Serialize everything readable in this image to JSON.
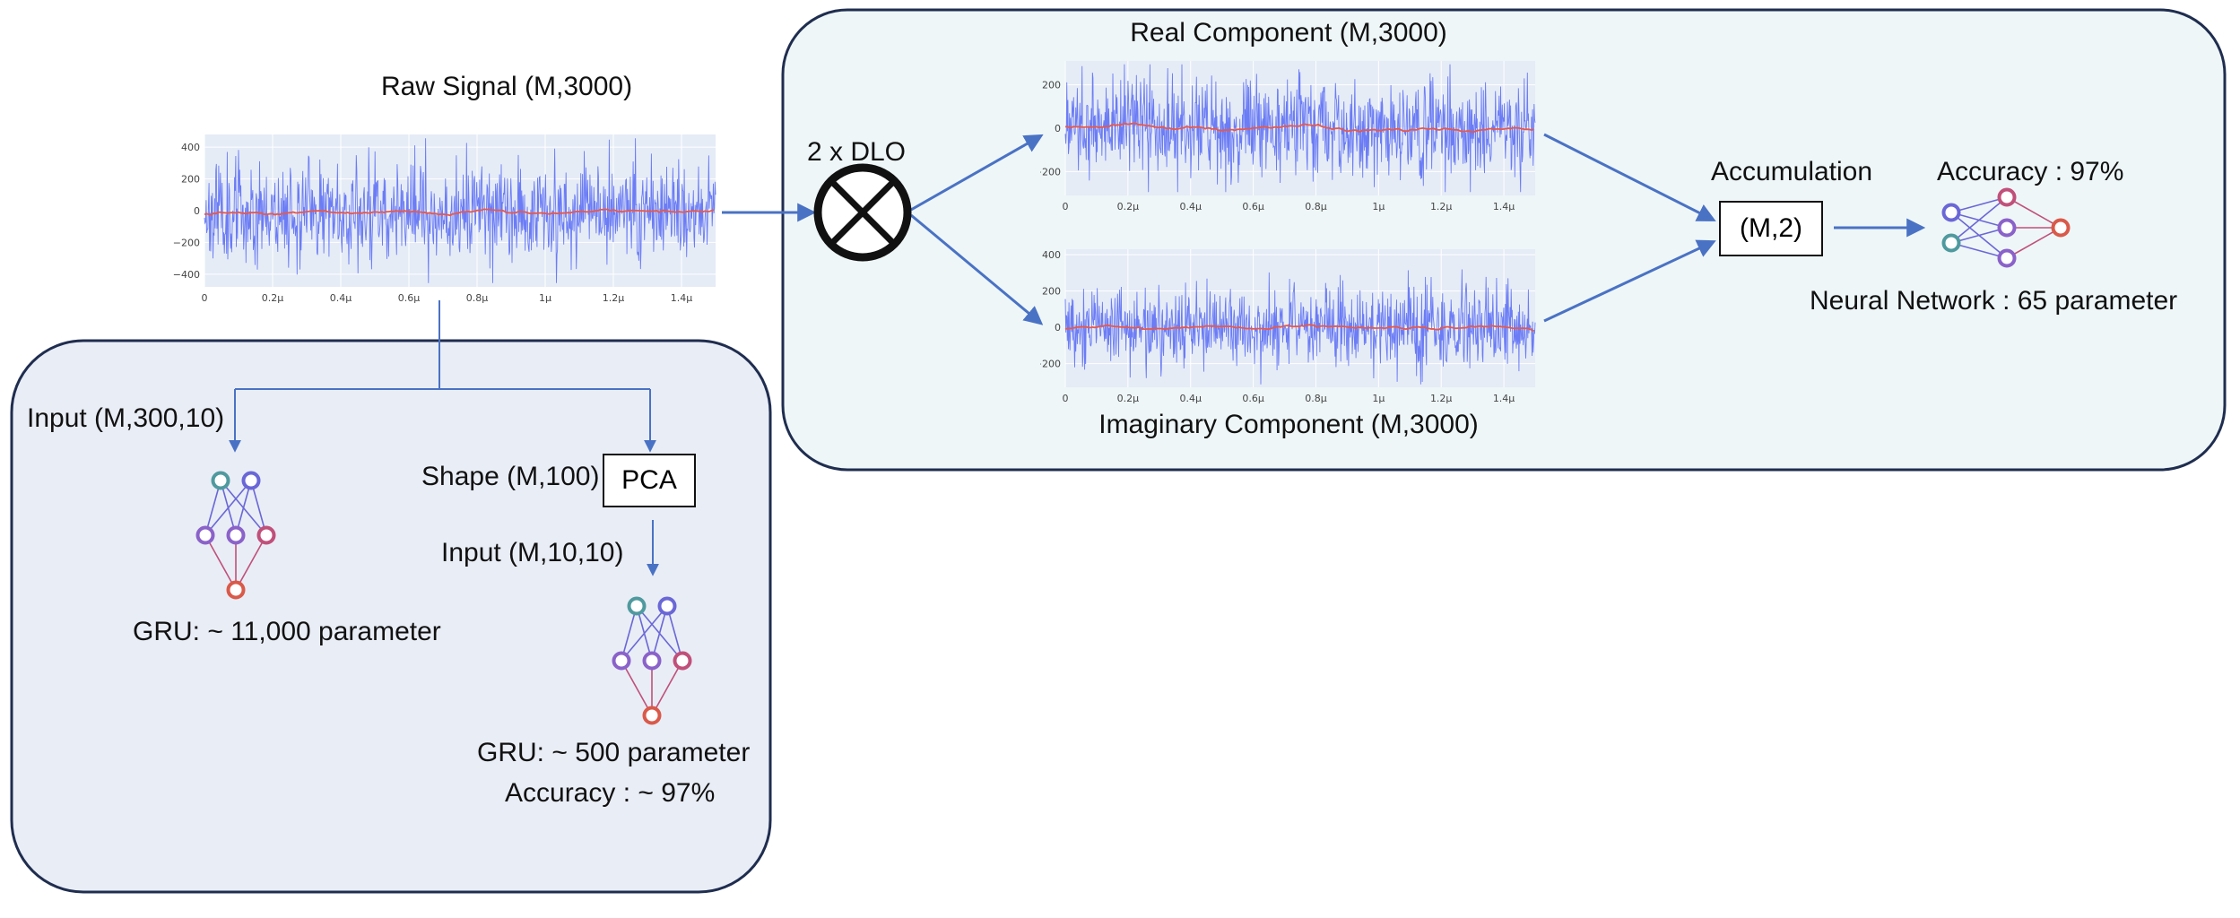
{
  "raw": {
    "title": "Raw Signal (M,3000)"
  },
  "real": {
    "title": "Real Component (M,3000)"
  },
  "imag": {
    "title": "Imaginary Component (M,3000)"
  },
  "mixer": {
    "label": "2 x DLO",
    "icon": "mixer-cross-icon"
  },
  "accumulation": {
    "label": "Accumulation",
    "box": "(M,2)"
  },
  "nn": {
    "accuracy": "Accuracy : 97%",
    "params": "Neural Network : 65 parameter"
  },
  "gru_full": {
    "input": "Input (M,300,10)",
    "params": "GRU: ~ 11,000 parameter"
  },
  "gru_pca": {
    "shape": "Shape (M,100)",
    "pca": "PCA",
    "input": "Input (M,10,10)",
    "params": "GRU: ~ 500 parameter",
    "accuracy": "Accuracy : ~ 97%"
  },
  "colors": {
    "signal": "#6b7cf5",
    "mean": "#e8584a",
    "plot_bg": "#e5ecf6",
    "arrow": "#4a72c4",
    "panel_right": "#eef6f8",
    "panel_left": "#e9edf6",
    "panel_border": "#1f2d4f",
    "node_teal": "#4f9a9e",
    "node_purple": "#8a62c9",
    "node_pink": "#c0507a",
    "node_red": "#d95a4a",
    "node_blue": "#6a67d6"
  },
  "chart_data": [
    {
      "type": "line",
      "title": "Raw Signal (M,3000)",
      "x_tick_labels": [
        "0",
        "0.2μ",
        "0.4μ",
        "0.6μ",
        "0.8μ",
        "1μ",
        "1.2μ",
        "1.4μ"
      ],
      "y_tick_labels": [
        "400",
        "200",
        "0",
        "−200",
        "−400"
      ],
      "y_ticks": [
        400,
        200,
        0,
        -200,
        -400
      ],
      "ylim": [
        -480,
        480
      ],
      "xlim": [
        0,
        1.5
      ],
      "n_points": 3000,
      "noise_amplitude": 160,
      "grid": true
    },
    {
      "type": "line",
      "title": "Real Component (M,3000)",
      "x_tick_labels": [
        "0",
        "0.2μ",
        "0.4μ",
        "0.6μ",
        "0.8μ",
        "1μ",
        "1.2μ",
        "1.4μ"
      ],
      "y_tick_labels": [
        "200",
        "0",
        "−200"
      ],
      "y_ticks": [
        200,
        0,
        -200
      ],
      "ylim": [
        -310,
        310
      ],
      "xlim": [
        0,
        1.5
      ],
      "n_points": 3000,
      "noise_amplitude": 110,
      "grid": true
    },
    {
      "type": "line",
      "title": "Imaginary Component (M,3000)",
      "x_tick_labels": [
        "0",
        "0.2μ",
        "0.4μ",
        "0.6μ",
        "0.8μ",
        "1μ",
        "1.2μ",
        "1.4μ"
      ],
      "y_tick_labels": [
        "400",
        "200",
        "0",
        "−200"
      ],
      "y_ticks": [
        400,
        200,
        0,
        -200
      ],
      "ylim": [
        -330,
        430
      ],
      "xlim": [
        0,
        1.5
      ],
      "n_points": 3000,
      "noise_amplitude": 110,
      "grid": true
    }
  ]
}
